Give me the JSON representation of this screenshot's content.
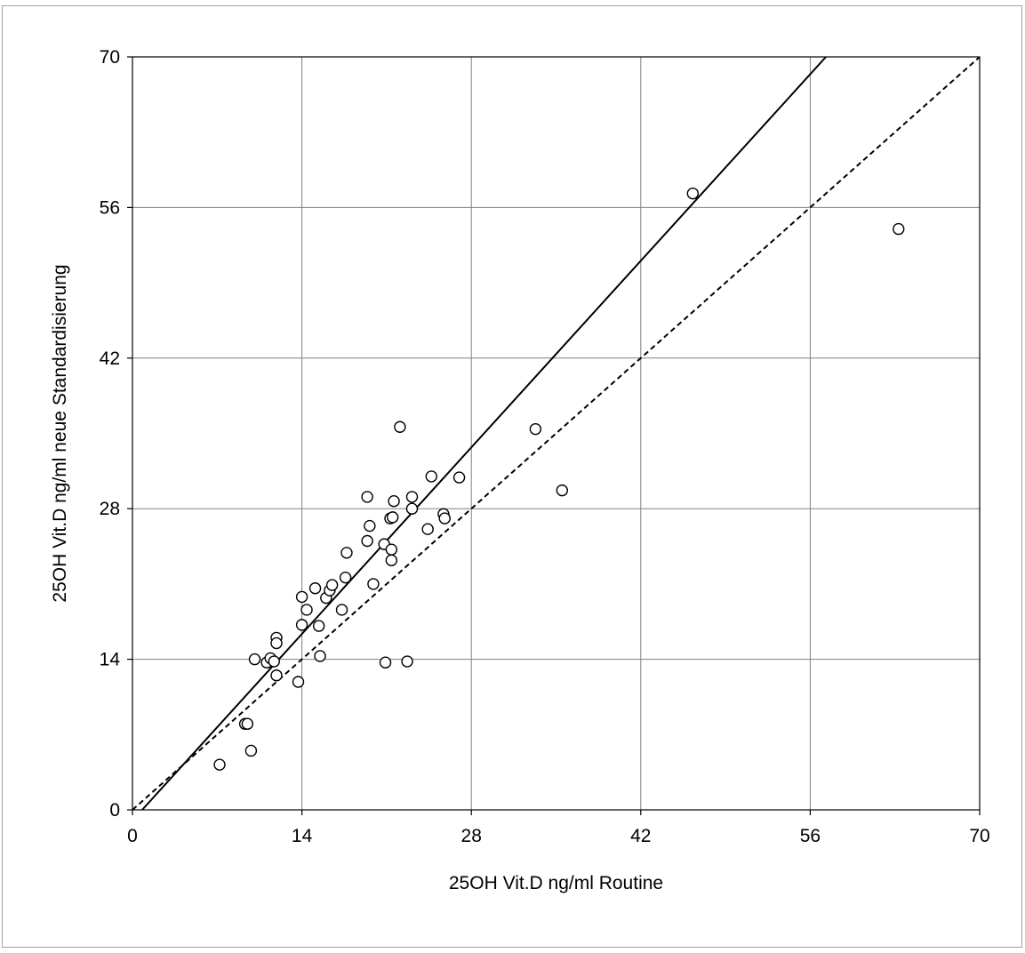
{
  "chart_data": {
    "type": "scatter",
    "title": "",
    "xlabel": "25OH Vit.D ng/ml Routine",
    "ylabel": "25OH Vit.D ng/ml neue Standardisierung",
    "xlim": [
      0,
      70
    ],
    "ylim": [
      0,
      70
    ],
    "xticks": [
      0,
      14,
      28,
      42,
      56,
      70
    ],
    "yticks": [
      0,
      14,
      28,
      42,
      56,
      70
    ],
    "grid": true,
    "legend": "none",
    "marker": "open-circle",
    "colors": {
      "line": "#000000",
      "grid": "#808080",
      "marker_fill": "#ffffff"
    },
    "series": [
      {
        "points": [
          [
            7.2,
            4.2
          ],
          [
            9.8,
            5.5
          ],
          [
            9.3,
            8.0
          ],
          [
            9.5,
            8.0
          ],
          [
            10.1,
            14.0
          ],
          [
            11.1,
            13.7
          ],
          [
            11.4,
            14.1
          ],
          [
            11.7,
            13.8
          ],
          [
            11.9,
            12.5
          ],
          [
            11.9,
            16.0
          ],
          [
            11.9,
            15.5
          ],
          [
            13.7,
            11.9
          ],
          [
            14.0,
            17.2
          ],
          [
            14.0,
            19.8
          ],
          [
            14.4,
            18.6
          ],
          [
            15.1,
            20.6
          ],
          [
            15.4,
            17.1
          ],
          [
            15.5,
            14.3
          ],
          [
            16.0,
            19.7
          ],
          [
            16.3,
            20.4
          ],
          [
            16.5,
            20.9
          ],
          [
            17.3,
            18.6
          ],
          [
            17.6,
            21.6
          ],
          [
            17.7,
            23.9
          ],
          [
            19.4,
            29.1
          ],
          [
            19.4,
            25.0
          ],
          [
            19.6,
            26.4
          ],
          [
            19.9,
            21.0
          ],
          [
            20.8,
            24.7
          ],
          [
            20.9,
            13.7
          ],
          [
            21.3,
            27.1
          ],
          [
            21.4,
            24.2
          ],
          [
            21.4,
            23.2
          ],
          [
            21.5,
            27.2
          ],
          [
            21.6,
            28.7
          ],
          [
            22.1,
            35.6
          ],
          [
            22.7,
            13.8
          ],
          [
            23.1,
            28.0
          ],
          [
            23.1,
            29.1
          ],
          [
            24.4,
            26.1
          ],
          [
            24.7,
            31.0
          ],
          [
            25.7,
            27.5
          ],
          [
            25.8,
            27.1
          ],
          [
            27.0,
            30.9
          ],
          [
            33.3,
            35.4
          ],
          [
            35.5,
            29.7
          ],
          [
            46.3,
            57.3
          ],
          [
            63.3,
            54.0
          ]
        ]
      }
    ],
    "regression_line": {
      "style": "solid",
      "points": [
        [
          0.8,
          0
        ],
        [
          57.3,
          70
        ]
      ]
    },
    "identity_line": {
      "style": "dashed",
      "points": [
        [
          0,
          0
        ],
        [
          70,
          70
        ]
      ]
    }
  }
}
